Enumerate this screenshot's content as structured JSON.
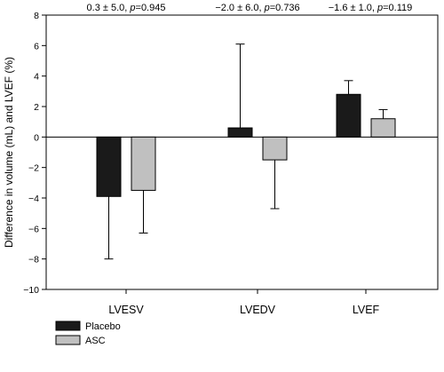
{
  "chart_data": {
    "type": "bar",
    "categories": [
      "LVESV",
      "LVEDV",
      "LVEF"
    ],
    "series": [
      {
        "name": "Placebo",
        "color": "#1a1a1a",
        "values": [
          -3.9,
          0.6,
          2.8
        ],
        "error_bars": [
          4.1,
          5.5,
          0.9
        ],
        "error_direction": [
          "down",
          "up",
          "up"
        ]
      },
      {
        "name": "ASC",
        "color": "#c0c0c0",
        "values": [
          -3.5,
          -1.5,
          1.2
        ],
        "error_bars": [
          2.8,
          3.2,
          0.6
        ],
        "error_direction": [
          "down",
          "down",
          "up"
        ]
      }
    ],
    "annotations": [
      "0.3 ± 5.0, p=0.945",
      "−2.0 ± 6.0, p=0.736",
      "−1.6 ± 1.0, p=0.119"
    ],
    "ylabel": "Difference in volume (mL) and LVEF (%)",
    "xlabel": "",
    "ylim": [
      -10,
      8
    ],
    "yticks": [
      "8",
      "6",
      "4",
      "2",
      "0",
      "−2",
      "−4",
      "−6",
      "−8",
      "−10"
    ],
    "grid": false,
    "legend_position": "bottom-left"
  }
}
